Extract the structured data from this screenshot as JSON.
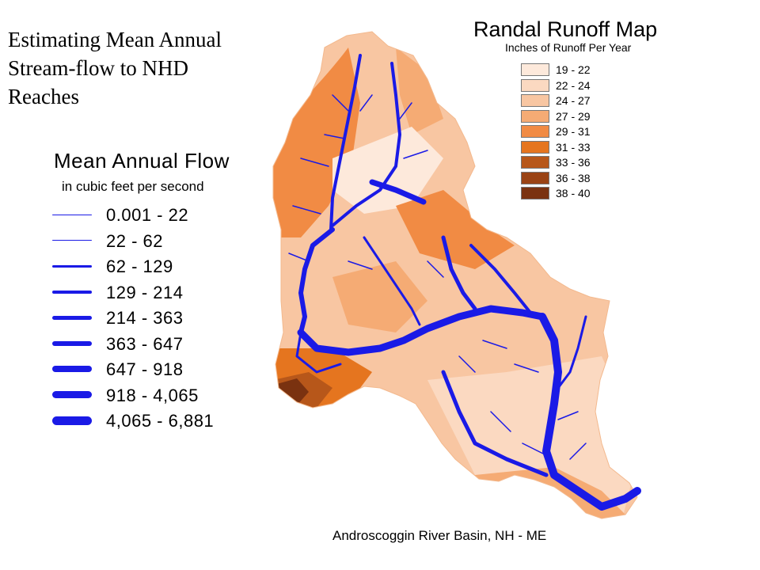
{
  "slide_title": [
    "Estimating Mean Annual",
    "Stream-flow to NHD",
    "Reaches"
  ],
  "runoff_map": {
    "title": "Randal Runoff Map",
    "subtitle": "Inches of Runoff  Per Year",
    "classes": [
      {
        "label": "19 - 22",
        "color": "#fde9db"
      },
      {
        "label": "22 - 24",
        "color": "#fbd9c1"
      },
      {
        "label": "24 - 27",
        "color": "#f8c6a2"
      },
      {
        "label": "27 - 29",
        "color": "#f5ab74"
      },
      {
        "label": "29 - 31",
        "color": "#f18b44"
      },
      {
        "label": "31 - 33",
        "color": "#e5751f"
      },
      {
        "label": "33 - 36",
        "color": "#b7571a"
      },
      {
        "label": "36 - 38",
        "color": "#9a4314"
      },
      {
        "label": "38 - 40",
        "color": "#7a3210"
      }
    ]
  },
  "flow_legend": {
    "title": "Mean Annual Flow",
    "subtitle": "in cubic feet per second",
    "line_color": "#1a1ae6",
    "classes": [
      {
        "label": "0.001 - 22",
        "weight": 1
      },
      {
        "label": "22 - 62",
        "weight": 1.5
      },
      {
        "label": "62 - 129",
        "weight": 3
      },
      {
        "label": "129 - 214",
        "weight": 4
      },
      {
        "label": "214 - 363",
        "weight": 5
      },
      {
        "label": "363 - 647",
        "weight": 6
      },
      {
        "label": "647 - 918",
        "weight": 7.5
      },
      {
        "label": "918 - 4,065",
        "weight": 9
      },
      {
        "label": "4,065 - 6,881",
        "weight": 11
      }
    ]
  },
  "caption": "Androscoggin River Basin, NH - ME"
}
